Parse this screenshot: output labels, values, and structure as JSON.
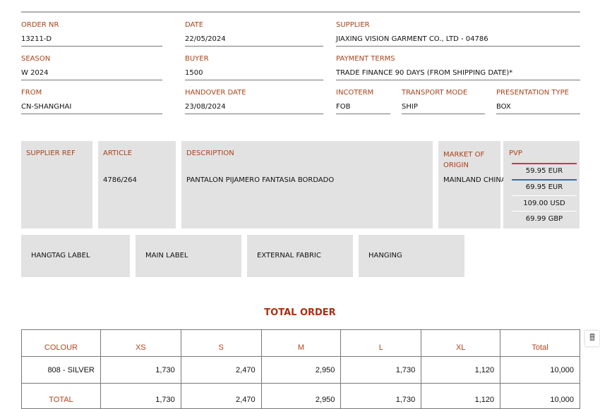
{
  "fields": [
    {
      "label": "ORDER NR",
      "value": "13211-D"
    },
    {
      "label": "DATE",
      "value": "22/05/2024"
    },
    {
      "label": "SUPPLIER",
      "value": "JIAXING VISION GARMENT CO., LTD - 04786"
    },
    {
      "label": "SEASON",
      "value": "W 2024"
    },
    {
      "label": "BUYER",
      "value": "1500"
    },
    {
      "label": "PAYMENT TERMS",
      "value": "TRADE FINANCE 90 DAYS (FROM SHIPPING DATE)*"
    },
    {
      "label": "FROM",
      "value": "CN-SHANGHAI"
    },
    {
      "label": "HANDOVER DATE",
      "value": "23/08/2024"
    },
    {
      "label": "INCOTERM",
      "value": "FOB"
    },
    {
      "label": "TRANSPORT MODE",
      "value": "SHIP"
    },
    {
      "label": "PRESENTATION TYPE",
      "value": "BOX"
    }
  ],
  "article": {
    "supplier_ref_label": "SUPPLIER REF",
    "supplier_ref": "",
    "article_label": "ARTICLE",
    "article": "4786/264",
    "description_label": "DESCRIPTION",
    "description": "PANTALON PIJAMERO FANTASIA BORDADO",
    "market_label": "MARKET OF ORIGIN",
    "market": "MAINLAND CHINA",
    "pvp_label": "PVP",
    "pvp": [
      "59.95 EUR",
      "69.95 EUR",
      "109.00 USD",
      "69.99 GBP"
    ],
    "pvp_line_colors": [
      "#e0303a",
      "#3a64c8",
      "#ffffff",
      "#ffffff"
    ]
  },
  "labels": [
    "HANGTAG LABEL",
    "MAIN LABEL",
    "EXTERNAL FABRIC",
    "HANGING"
  ],
  "total_order": {
    "title": "TOTAL ORDER",
    "headers": [
      "COLOUR",
      "XS",
      "S",
      "M",
      "L",
      "XL",
      "Total"
    ],
    "rows": [
      [
        "808 - SILVER",
        "1,730",
        "2,470",
        "2,950",
        "1,730",
        "1,120",
        "10,000"
      ]
    ],
    "total": [
      "TOTAL",
      "1,730",
      "2,470",
      "2,950",
      "1,730",
      "1,120",
      "10,000"
    ]
  },
  "calculator_icon": "calculator-icon"
}
